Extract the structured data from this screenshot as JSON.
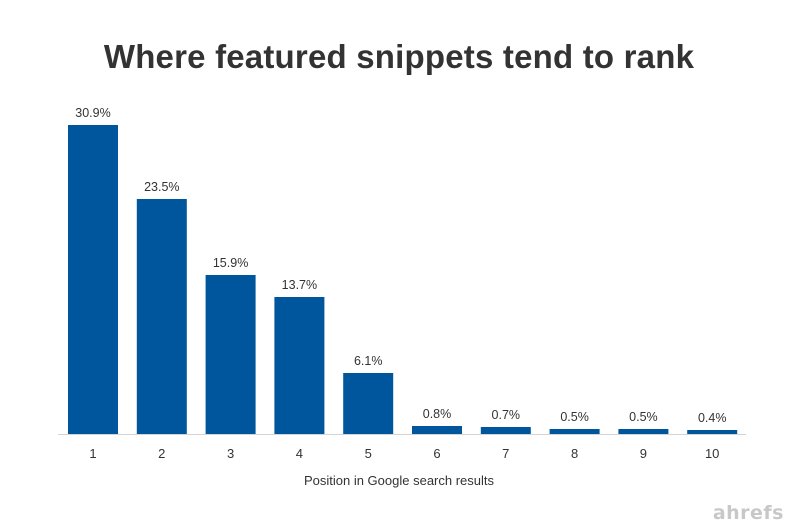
{
  "chart_data": {
    "type": "bar",
    "title": "Where featured snippets tend to rank",
    "xlabel": "Position in Google search results",
    "ylabel": "",
    "categories": [
      "1",
      "2",
      "3",
      "4",
      "5",
      "6",
      "7",
      "8",
      "9",
      "10"
    ],
    "values": [
      30.9,
      23.5,
      15.9,
      13.7,
      6.1,
      0.8,
      0.7,
      0.5,
      0.5,
      0.4
    ],
    "data_labels": [
      "30.9%",
      "23.5%",
      "15.9%",
      "13.7%",
      "6.1%",
      "0.8%",
      "0.7%",
      "0.5%",
      "0.5%",
      "0.4%"
    ],
    "ylim": [
      0,
      30.9
    ],
    "grid": false,
    "legend": "none",
    "bar_color": "#00569d"
  },
  "branding": {
    "watermark": "ahrefs"
  }
}
